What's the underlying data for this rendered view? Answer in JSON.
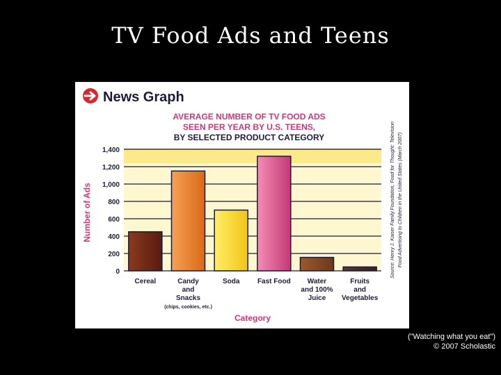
{
  "slide": {
    "title": "TV Food Ads and Teens",
    "caption_line1": "(\"Watching what you eat\")",
    "caption_line2": "© 2007 Scholastic"
  },
  "figure": {
    "brand": "News Graph",
    "brand_icon": "arrow-circle-icon",
    "source_line1": "Source: Henry J. Kaiser Family Foundation, Food for Thought: Television",
    "source_line2": "Food Advertising to Children in the United States (March 2007)",
    "colors": {
      "accent_red": "#d9272e",
      "heading_pink": "#d0367a",
      "axis_navy": "#1b1b3a",
      "band_yellow": "#fbe98a",
      "band_cream": "#fff7cf"
    }
  },
  "chart_data": {
    "type": "bar",
    "title_lines": [
      "AVERAGE NUMBER OF TV FOOD ADS",
      "SEEN PER YEAR BY U.S. TEENS,",
      "BY SELECTED PRODUCT CATEGORY"
    ],
    "ylabel": "Number of Ads",
    "xlabel": "Category",
    "ylim": [
      0,
      1400
    ],
    "yticks": [
      "0",
      "200",
      "400",
      "600",
      "800",
      "1,000",
      "1,200",
      "1,400"
    ],
    "grid": true,
    "categories": [
      {
        "lines": [
          "Cereal"
        ],
        "note": ""
      },
      {
        "lines": [
          "Candy",
          "and",
          "Snacks"
        ],
        "note": "(chips, cookies, etc.)"
      },
      {
        "lines": [
          "Soda"
        ],
        "note": ""
      },
      {
        "lines": [
          "Fast Food"
        ],
        "note": ""
      },
      {
        "lines": [
          "Water",
          "and 100%",
          "Juice"
        ],
        "note": ""
      },
      {
        "lines": [
          "Fruits",
          "and",
          "Vegetables"
        ],
        "note": ""
      }
    ],
    "values": [
      450,
      1150,
      700,
      1320,
      155,
      45
    ],
    "bar_colors": [
      [
        "#8a3a20",
        "#5a1a10"
      ],
      [
        "#f7a055",
        "#d86a18"
      ],
      [
        "#ffee66",
        "#f2c418"
      ],
      [
        "#f58cb6",
        "#c23a74"
      ],
      [
        "#9a5a30",
        "#6a3a18"
      ],
      [
        "#5a3830",
        "#3a2018"
      ]
    ]
  }
}
